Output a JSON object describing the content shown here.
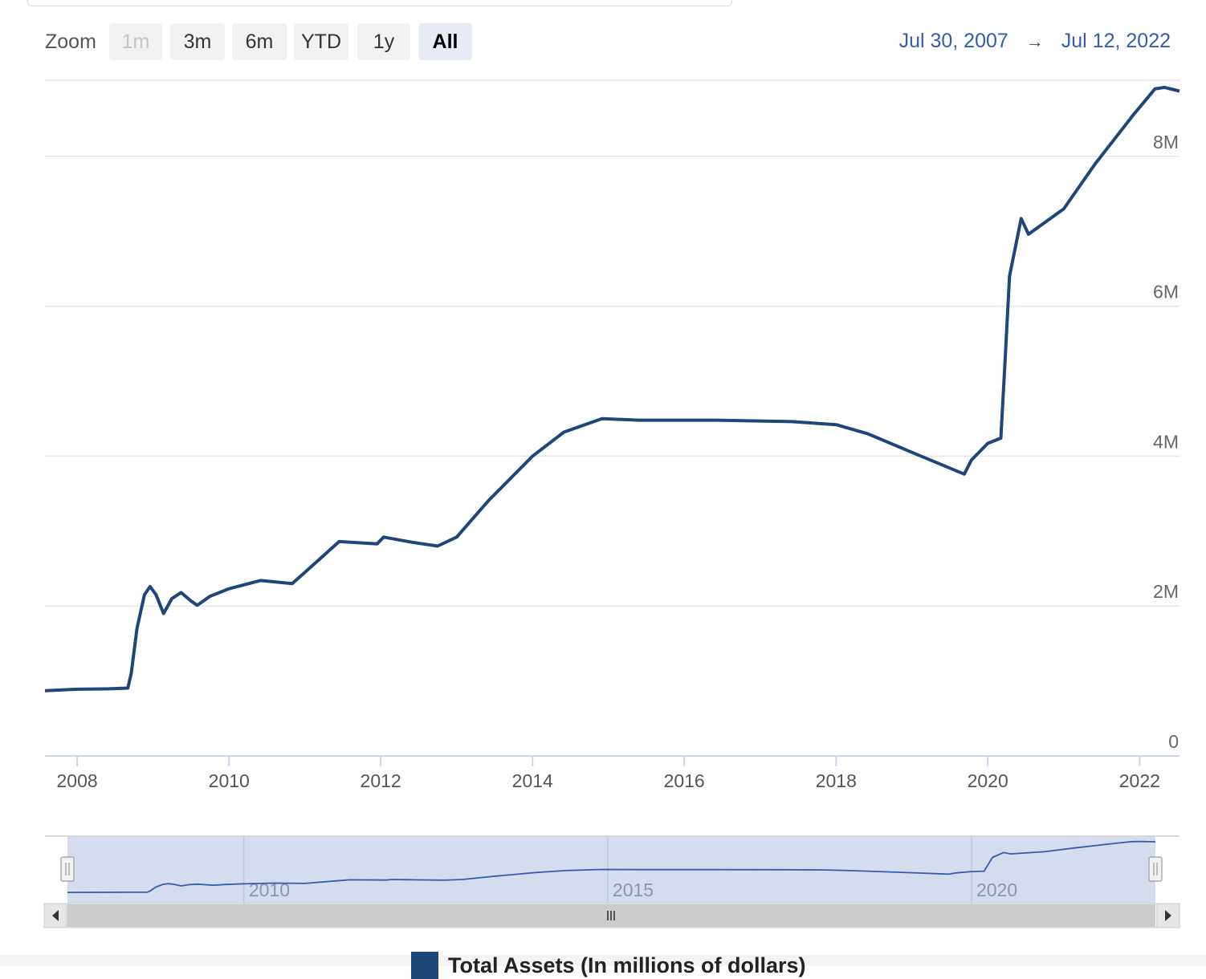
{
  "toolbar": {
    "zoom_label": "Zoom",
    "buttons": [
      {
        "label": "1m",
        "state": "disabled"
      },
      {
        "label": "3m",
        "state": "normal"
      },
      {
        "label": "6m",
        "state": "normal"
      },
      {
        "label": "YTD",
        "state": "normal"
      },
      {
        "label": "1y",
        "state": "normal"
      },
      {
        "label": "All",
        "state": "selected"
      }
    ],
    "range_from": "Jul 30, 2007",
    "range_arrow": "→",
    "range_to": "Jul 12, 2022"
  },
  "colors": {
    "series": "#1f4678",
    "range_text": "#335cad",
    "navigator_mask": "#ccd6eb",
    "gridline": "#e6e6e6"
  },
  "chart_data": {
    "type": "line",
    "title": "",
    "xlabel": "",
    "ylabel": "",
    "xlim": [
      "2007-07-30",
      "2022-07-12"
    ],
    "ylim": [
      0,
      9000000
    ],
    "y_ticks": [
      {
        "value": 0,
        "label": "0"
      },
      {
        "value": 2000000,
        "label": "2M"
      },
      {
        "value": 4000000,
        "label": "4M"
      },
      {
        "value": 6000000,
        "label": "6M"
      },
      {
        "value": 8000000,
        "label": "8M"
      }
    ],
    "x_ticks": [
      "2008",
      "2010",
      "2012",
      "2014",
      "2016",
      "2018",
      "2020",
      "2022"
    ],
    "navigator_ticks": [
      "2010",
      "2015",
      "2020"
    ],
    "grid": true,
    "legend_position": "bottom-center",
    "series": [
      {
        "name": "Total Assets (In millions of dollars)",
        "color": "#1f4678",
        "points": [
          [
            "2007-07-30",
            870000
          ],
          [
            "2008-01-01",
            890000
          ],
          [
            "2008-06-01",
            895000
          ],
          [
            "2008-09-01",
            905000
          ],
          [
            "2008-09-17",
            1100000
          ],
          [
            "2008-10-15",
            1700000
          ],
          [
            "2008-11-20",
            2150000
          ],
          [
            "2008-12-17",
            2260000
          ],
          [
            "2009-01-15",
            2150000
          ],
          [
            "2009-02-20",
            1900000
          ],
          [
            "2009-04-01",
            2100000
          ],
          [
            "2009-05-15",
            2180000
          ],
          [
            "2009-07-01",
            2070000
          ],
          [
            "2009-08-01",
            2010000
          ],
          [
            "2009-10-01",
            2130000
          ],
          [
            "2010-01-01",
            2230000
          ],
          [
            "2010-06-01",
            2340000
          ],
          [
            "2010-11-01",
            2300000
          ],
          [
            "2011-01-01",
            2450000
          ],
          [
            "2011-06-15",
            2860000
          ],
          [
            "2011-12-15",
            2830000
          ],
          [
            "2012-01-15",
            2920000
          ],
          [
            "2012-06-01",
            2850000
          ],
          [
            "2012-10-01",
            2800000
          ],
          [
            "2013-01-01",
            2920000
          ],
          [
            "2013-06-01",
            3400000
          ],
          [
            "2014-01-01",
            4000000
          ],
          [
            "2014-06-01",
            4320000
          ],
          [
            "2014-12-01",
            4500000
          ],
          [
            "2015-06-01",
            4480000
          ],
          [
            "2016-06-01",
            4480000
          ],
          [
            "2017-06-01",
            4460000
          ],
          [
            "2018-01-01",
            4420000
          ],
          [
            "2018-06-01",
            4300000
          ],
          [
            "2019-01-01",
            4050000
          ],
          [
            "2019-09-10",
            3760000
          ],
          [
            "2019-10-15",
            3950000
          ],
          [
            "2020-01-01",
            4170000
          ],
          [
            "2020-03-04",
            4240000
          ],
          [
            "2020-03-25",
            5300000
          ],
          [
            "2020-04-15",
            6400000
          ],
          [
            "2020-06-10",
            7170000
          ],
          [
            "2020-07-15",
            6960000
          ],
          [
            "2021-01-01",
            7300000
          ],
          [
            "2021-06-01",
            7900000
          ],
          [
            "2021-12-01",
            8550000
          ],
          [
            "2022-03-16",
            8900000
          ],
          [
            "2022-05-01",
            8920000
          ],
          [
            "2022-07-12",
            8870000
          ]
        ]
      }
    ]
  }
}
